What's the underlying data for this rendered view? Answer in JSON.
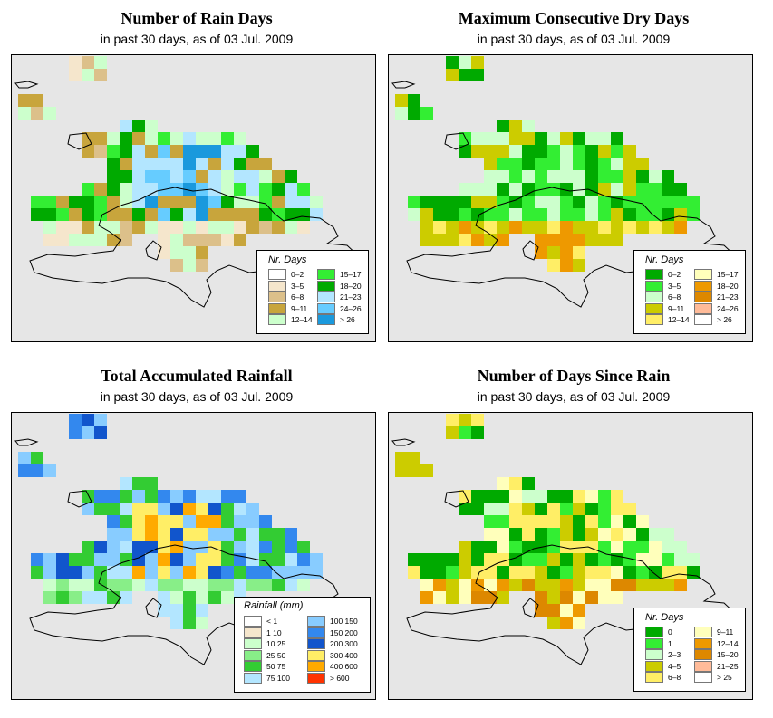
{
  "panels": [
    {
      "title": "Number of Rain Days",
      "subtitle": "in past 30 days, as of  03 Jul. 2009",
      "legend": {
        "title": "Nr. Days",
        "items": [
          {
            "label": "0–2",
            "color": "#ffffff"
          },
          {
            "label": "3–5",
            "color": "#f5e6cc"
          },
          {
            "label": "6–8",
            "color": "#dcc08a"
          },
          {
            "label": "9–11",
            "color": "#c8a53c"
          },
          {
            "label": "12–14",
            "color": "#ccffcc"
          },
          {
            "label": "15–17",
            "color": "#33ee33"
          },
          {
            "label": "18–20",
            "color": "#00aa00"
          },
          {
            "label": "21–23",
            "color": "#b3e6ff"
          },
          {
            "label": "24–26",
            "color": "#66ccff"
          },
          {
            "label": "> 26",
            "color": "#1a99dd"
          }
        ]
      }
    },
    {
      "title": "Maximum Consecutive Dry Days",
      "subtitle": "in past 30 days, as of  03 Jul. 2009",
      "legend": {
        "title": "Nr. Days",
        "items": [
          {
            "label": "0–2",
            "color": "#00aa00"
          },
          {
            "label": "3–5",
            "color": "#33ee33"
          },
          {
            "label": "6–8",
            "color": "#ccffcc"
          },
          {
            "label": "9–11",
            "color": "#cccc00"
          },
          {
            "label": "12–14",
            "color": "#ffee66"
          },
          {
            "label": "15–17",
            "color": "#ffffbb"
          },
          {
            "label": "18–20",
            "color": "#ee9900"
          },
          {
            "label": "21–23",
            "color": "#dd8800"
          },
          {
            "label": "24–26",
            "color": "#ffbb99"
          },
          {
            "label": "> 26",
            "color": "#ffffff"
          }
        ]
      }
    },
    {
      "title": "Total Accumulated Rainfall",
      "subtitle": "in past 30 days, as of  03 Jul. 2009",
      "legend": {
        "title": "Rainfall (mm)",
        "items": [
          {
            "label": "< 1",
            "color": "#ffffff"
          },
          {
            "label": "1    10",
            "color": "#f5e6cc"
          },
          {
            "label": "10    25",
            "color": "#ccffcc"
          },
          {
            "label": "25    50",
            "color": "#88ee88"
          },
          {
            "label": "50    75",
            "color": "#33cc33"
          },
          {
            "label": "75    100",
            "color": "#b3e6ff"
          },
          {
            "label": "100   150",
            "color": "#88ccff"
          },
          {
            "label": "150   200",
            "color": "#3388ee"
          },
          {
            "label": "200   300",
            "color": "#1155cc"
          },
          {
            "label": "300   400",
            "color": "#ffee66"
          },
          {
            "label": "400   600",
            "color": "#ffaa00"
          },
          {
            "label": "> 600",
            "color": "#ff3300"
          }
        ]
      }
    },
    {
      "title": "Number of Days Since Rain",
      "subtitle": "in past 30 days, as of  03 Jul. 2009",
      "legend": {
        "title": "Nr. Days",
        "items": [
          {
            "label": "0",
            "color": "#00aa00"
          },
          {
            "label": "1",
            "color": "#33ee33"
          },
          {
            "label": "2–3",
            "color": "#ccffcc"
          },
          {
            "label": "4–5",
            "color": "#cccc00"
          },
          {
            "label": "6–8",
            "color": "#ffee66"
          },
          {
            "label": "9–11",
            "color": "#ffffbb"
          },
          {
            "label": "12–14",
            "color": "#ee9900"
          },
          {
            "label": "15–20",
            "color": "#dd8800"
          },
          {
            "label": "21–25",
            "color": "#ffbb99"
          },
          {
            "label": "> 25",
            "color": "#ffffff"
          }
        ]
      }
    }
  ]
}
